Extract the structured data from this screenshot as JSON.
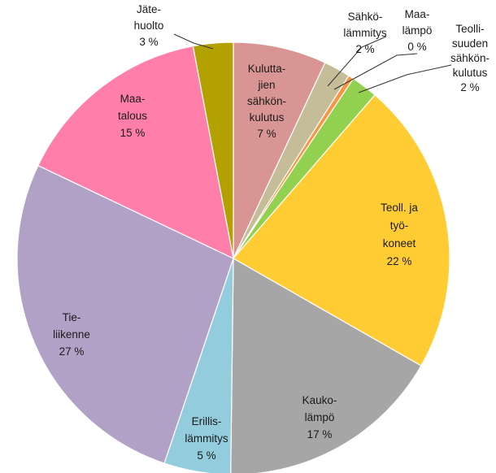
{
  "chart_data": {
    "type": "pie",
    "slices": [
      {
        "label_lines": [
          "Kulutta-",
          "jien",
          "sähkön-",
          "kulutus"
        ],
        "value_text": "7 %",
        "value": 7,
        "color": "#D99594"
      },
      {
        "label_lines": [
          "Sähkö-",
          "lämmitys"
        ],
        "value_text": "2 %",
        "value": 2,
        "color": "#C4BD97"
      },
      {
        "label_lines": [
          "Maa-",
          "lämpö"
        ],
        "value_text": "0 %",
        "value": 0.4,
        "color": "#F79646"
      },
      {
        "label_lines": [
          "Teolli-",
          "suuden",
          "sähkön-",
          "kulutus"
        ],
        "value_text": "2 %",
        "value": 2,
        "color": "#92D050"
      },
      {
        "label_lines": [
          "Teoll. ja",
          "työ-",
          "koneet"
        ],
        "value_text": "22 %",
        "value": 22,
        "color": "#FFCC33"
      },
      {
        "label_lines": [
          "Kauko-",
          "lämpö"
        ],
        "value_text": "17 %",
        "value": 17,
        "color": "#A6A6A6"
      },
      {
        "label_lines": [
          "Erillis-",
          "lämmitys"
        ],
        "value_text": "5 %",
        "value": 5,
        "color": "#93CDDD"
      },
      {
        "label_lines": [
          "Tie-",
          "liikenne"
        ],
        "value_text": "27 %",
        "value": 27,
        "color": "#B2A1C7"
      },
      {
        "label_lines": [
          "Maa-",
          "talous"
        ],
        "value_text": "15 %",
        "value": 15,
        "color": "#FF7FAA"
      },
      {
        "label_lines": [
          "Jäte-",
          "huolto"
        ],
        "value_text": "3 %",
        "value": 3,
        "color": "#B3A100"
      }
    ],
    "start_angle_deg": 0,
    "direction": "clockwise"
  }
}
